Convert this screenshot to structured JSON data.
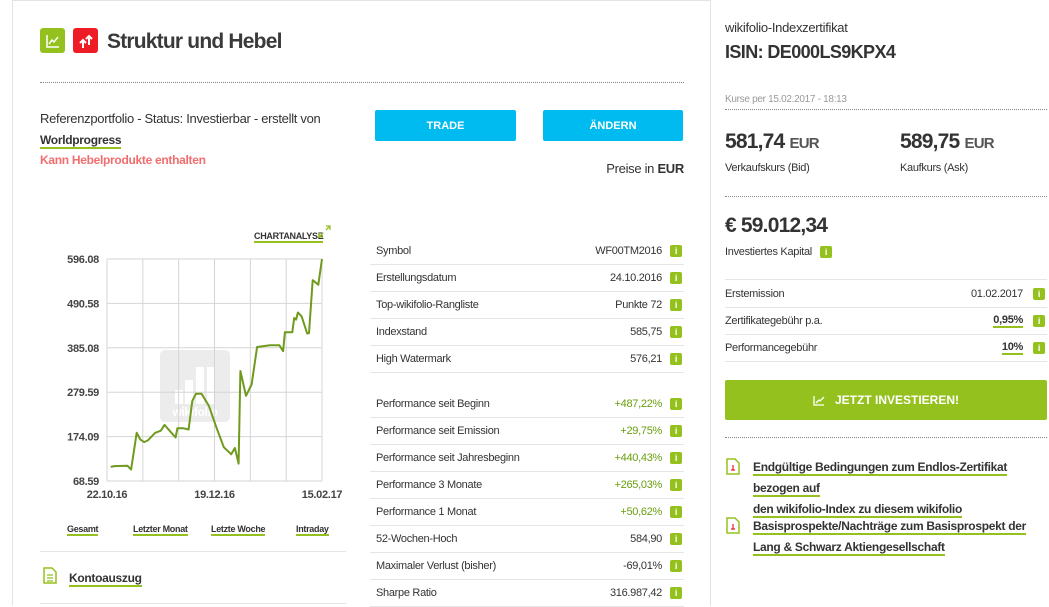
{
  "header": {
    "title": "Struktur und Hebel",
    "icons": [
      "chart-trend-icon",
      "leverage-arrows-icon"
    ],
    "colors": {
      "green": "#95c11f",
      "red": "#ee1c25",
      "blue": "#00bbf0",
      "warning": "#f26d6d"
    }
  },
  "info": {
    "text": "Referenzportfolio - Status: Investierbar - erstellt von",
    "author": "Worldprogress",
    "warning": "Kann Hebelprodukte enthalten"
  },
  "buttons": {
    "trade": "TRADE",
    "change": "ÄNDERN"
  },
  "prices_in": {
    "label": "Preise in",
    "currency": "EUR"
  },
  "chart_link": "CHARTANALYSE",
  "chart_data": {
    "type": "line",
    "y_ticks": [
      "596.08",
      "490.58",
      "385.08",
      "279.59",
      "174.09",
      "68.59"
    ],
    "ylim": [
      68.59,
      596.08
    ],
    "x_ticks": [
      "22.10.16",
      "19.12.16",
      "15.02.17"
    ],
    "xlim": [
      "2016-10-22",
      "2017-02-15"
    ],
    "grid": true,
    "line_color": "#6f9a1e",
    "watermark": "wikifolio",
    "points": [
      [
        "2016-10-24",
        102
      ],
      [
        "2016-10-26",
        104
      ],
      [
        "2016-11-02",
        105
      ],
      [
        "2016-11-04",
        96
      ],
      [
        "2016-11-07",
        183
      ],
      [
        "2016-11-09",
        167
      ],
      [
        "2016-11-11",
        161
      ],
      [
        "2016-11-13",
        165
      ],
      [
        "2016-11-17",
        183
      ],
      [
        "2016-11-20",
        188
      ],
      [
        "2016-11-22",
        202
      ],
      [
        "2016-11-25",
        187
      ],
      [
        "2016-11-28",
        172
      ],
      [
        "2016-11-29",
        194
      ],
      [
        "2016-12-02",
        194
      ],
      [
        "2016-12-05",
        191
      ],
      [
        "2016-12-07",
        259
      ],
      [
        "2016-12-09",
        276
      ],
      [
        "2016-12-12",
        276
      ],
      [
        "2016-12-16",
        247
      ],
      [
        "2016-12-20",
        196
      ],
      [
        "2016-12-24",
        149
      ],
      [
        "2016-12-28",
        132
      ],
      [
        "2016-12-30",
        147
      ],
      [
        "2017-01-01",
        110
      ],
      [
        "2017-01-02",
        330
      ],
      [
        "2017-01-05",
        271
      ],
      [
        "2017-01-08",
        298
      ],
      [
        "2017-01-11",
        387
      ],
      [
        "2017-01-18",
        391
      ],
      [
        "2017-01-23",
        391
      ],
      [
        "2017-01-25",
        377
      ],
      [
        "2017-01-26",
        422
      ],
      [
        "2017-01-30",
        422
      ],
      [
        "2017-01-31",
        456
      ],
      [
        "2017-02-01",
        452
      ],
      [
        "2017-02-02",
        469
      ],
      [
        "2017-02-04",
        460
      ],
      [
        "2017-02-07",
        419
      ],
      [
        "2017-02-08",
        420
      ],
      [
        "2017-02-10",
        546
      ],
      [
        "2017-02-13",
        535
      ],
      [
        "2017-02-15",
        596
      ]
    ]
  },
  "ranges": [
    "Gesamt",
    "Letzter Monat",
    "Letzte Woche",
    "Intraday"
  ],
  "kontoauszug": "Kontoauszug",
  "stats": [
    {
      "label": "Symbol",
      "value": "WF00TM2016"
    },
    {
      "label": "Erstellungsdatum",
      "value": "24.10.2016"
    },
    {
      "label": "Top-wikifolio-Rangliste",
      "value": "Punkte 72"
    },
    {
      "label": "Indexstand",
      "value": "585,75"
    },
    {
      "label": "High Watermark",
      "value": "576,21"
    }
  ],
  "performance": [
    {
      "label": "Performance seit Beginn",
      "value": "+487,22%"
    },
    {
      "label": "Performance seit Emission",
      "value": "+29,75%"
    },
    {
      "label": "Performance seit Jahresbeginn",
      "value": "+440,43%"
    },
    {
      "label": "Performance 3 Monate",
      "value": "+265,03%"
    },
    {
      "label": "Performance 1 Monat",
      "value": "+50,62%"
    },
    {
      "label": "52-Wochen-Hoch",
      "value": "584,90"
    },
    {
      "label": "Maximaler Verlust (bisher)",
      "value": "-69,01%"
    },
    {
      "label": "Sharpe Ratio",
      "value": "316.987,42"
    }
  ],
  "info_glyph": "i",
  "right": {
    "subtitle": "wikifolio-Indexzertifikat",
    "isin": "ISIN: DE000LS9KPX4",
    "quote_time": "Kurse per 15.02.2017 - 18:13",
    "bid": {
      "value": "581,74",
      "currency": "EUR",
      "label": "Verkaufskurs (Bid)"
    },
    "ask": {
      "value": "589,75",
      "currency": "EUR",
      "label": "Kaufkurs (Ask)"
    },
    "capital": {
      "value": "€ 59.012,34",
      "label": "Investiertes Kapital"
    },
    "rows": [
      {
        "label": "Erstemission",
        "value": "01.02.2017"
      },
      {
        "label": "Zertifikategebühr p.a.",
        "value": "0,95%"
      },
      {
        "label": "Performancegebühr",
        "value": "10%"
      }
    ],
    "invest_button": "JETZT INVESTIEREN!",
    "links": [
      {
        "line1": "Endgültige Bedingungen zum Endlos-Zertifikat bezogen auf",
        "line2": "den wikifolio-Index zu diesem wikifolio"
      },
      {
        "line1": "Basisprospekte/Nachträge zum Basisprospekt der",
        "line2": "Lang & Schwarz Aktiengesellschaft"
      }
    ]
  }
}
